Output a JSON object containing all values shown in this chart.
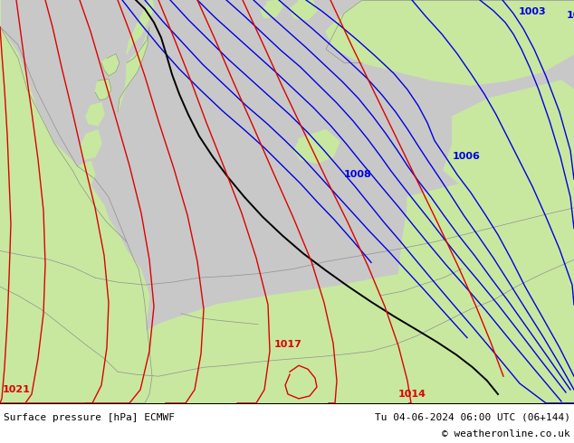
{
  "title_left": "Surface pressure [hPa] ECMWF",
  "title_right": "Tu 04-06-2024 06:00 UTC (06+144)",
  "copyright": "© weatheronline.co.uk",
  "bg_color": "#c8e8a0",
  "sea_color": "#c8c8c8",
  "land_color": "#c8e8a0",
  "coast_color": "#909090",
  "border_color": "#909090",
  "isobar_blue_color": "#0000dd",
  "isobar_red_color": "#dd0000",
  "isobar_black_color": "#000000",
  "label_fontsize": 8,
  "footer_fontsize": 8,
  "footer_bg": "#ffffff"
}
